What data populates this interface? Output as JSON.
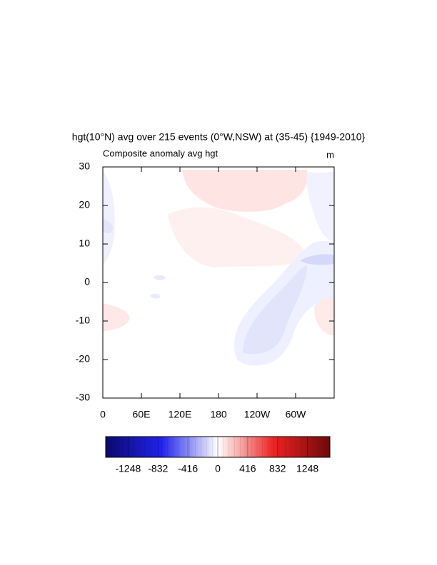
{
  "chart_data": {
    "type": "contour",
    "title": "hgt(10°N) avg over 215 events (0°W,NSW) at (35-45) {1949-2010}",
    "subtitle_left": "Composite anomaly avg hgt",
    "subtitle_right": "m",
    "xlim": [
      0,
      360
    ],
    "xticks": [
      0,
      {
        "value": 60,
        "label": "60E"
      },
      {
        "value": 120,
        "label": "120E"
      },
      180,
      {
        "value": 240,
        "label": "120W"
      },
      {
        "value": 300,
        "label": "60W"
      }
    ],
    "ylim": [
      -30,
      30
    ],
    "yticks": [
      -30,
      -20,
      -10,
      0,
      10,
      20,
      30
    ],
    "colorbar": {
      "lim": [
        -1560,
        1560
      ],
      "ticks": [
        -1248,
        -832,
        -416,
        0,
        416,
        832,
        1248
      ],
      "low_color": "#0a0a6e",
      "mid_color": "#ffffff",
      "high_color": "#6e0a0a"
    }
  }
}
